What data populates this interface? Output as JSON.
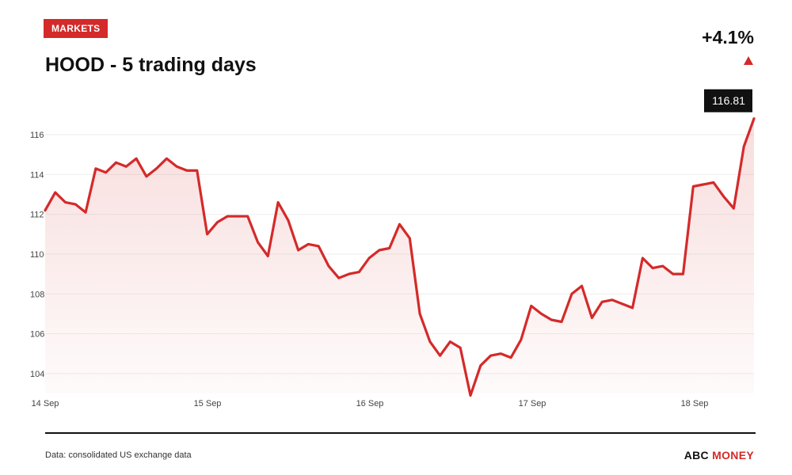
{
  "header": {
    "tag_label": "MARKETS",
    "title": "HOOD - 5 trading days",
    "change": "+4.1%"
  },
  "colors": {
    "accent": "#d42a2a",
    "text": "#111111",
    "grid": "#eeeeee"
  },
  "footer": {
    "source": "Data: consolidated US exchange data",
    "brand_part1": "ABC",
    "brand_part2": "MONEY"
  },
  "chart_data": {
    "type": "area",
    "title": "HOOD - 5 trading days",
    "ylim": [
      103,
      117
    ],
    "y_ticks": [
      104,
      106,
      108,
      110,
      112,
      114,
      116
    ],
    "x_ticks": [
      {
        "label": "14 Sep",
        "day": 0
      },
      {
        "label": "15 Sep",
        "day": 1
      },
      {
        "label": "16 Sep",
        "day": 2
      },
      {
        "label": "17 Sep",
        "day": 3
      },
      {
        "label": "18 Sep",
        "day": 4
      }
    ],
    "grid": true,
    "last_value_label": "116.81",
    "series": [
      {
        "values": [
          112.2,
          113.1,
          112.6,
          112.5,
          112.1,
          114.3,
          114.1,
          114.6,
          114.4,
          114.8,
          113.9,
          114.3,
          114.8,
          114.4,
          114.2,
          114.2,
          111.0,
          111.6,
          111.9,
          111.9,
          111.9,
          110.6,
          109.9,
          112.6,
          111.7,
          110.2,
          110.5,
          110.4,
          109.4,
          108.8,
          109.0,
          109.1,
          109.8,
          110.2,
          110.3,
          111.5,
          110.8,
          107.0,
          105.6,
          104.9,
          105.6,
          105.3,
          102.9,
          104.4,
          104.9,
          105.0,
          104.8,
          105.7,
          107.4,
          107.0,
          106.7,
          106.6,
          108.0,
          108.4,
          106.8,
          107.6,
          107.7,
          107.5,
          107.3,
          109.8,
          109.3,
          109.4,
          109.0,
          109.0,
          113.4,
          113.5,
          113.6,
          112.9,
          112.3,
          115.4,
          116.81
        ]
      }
    ]
  }
}
